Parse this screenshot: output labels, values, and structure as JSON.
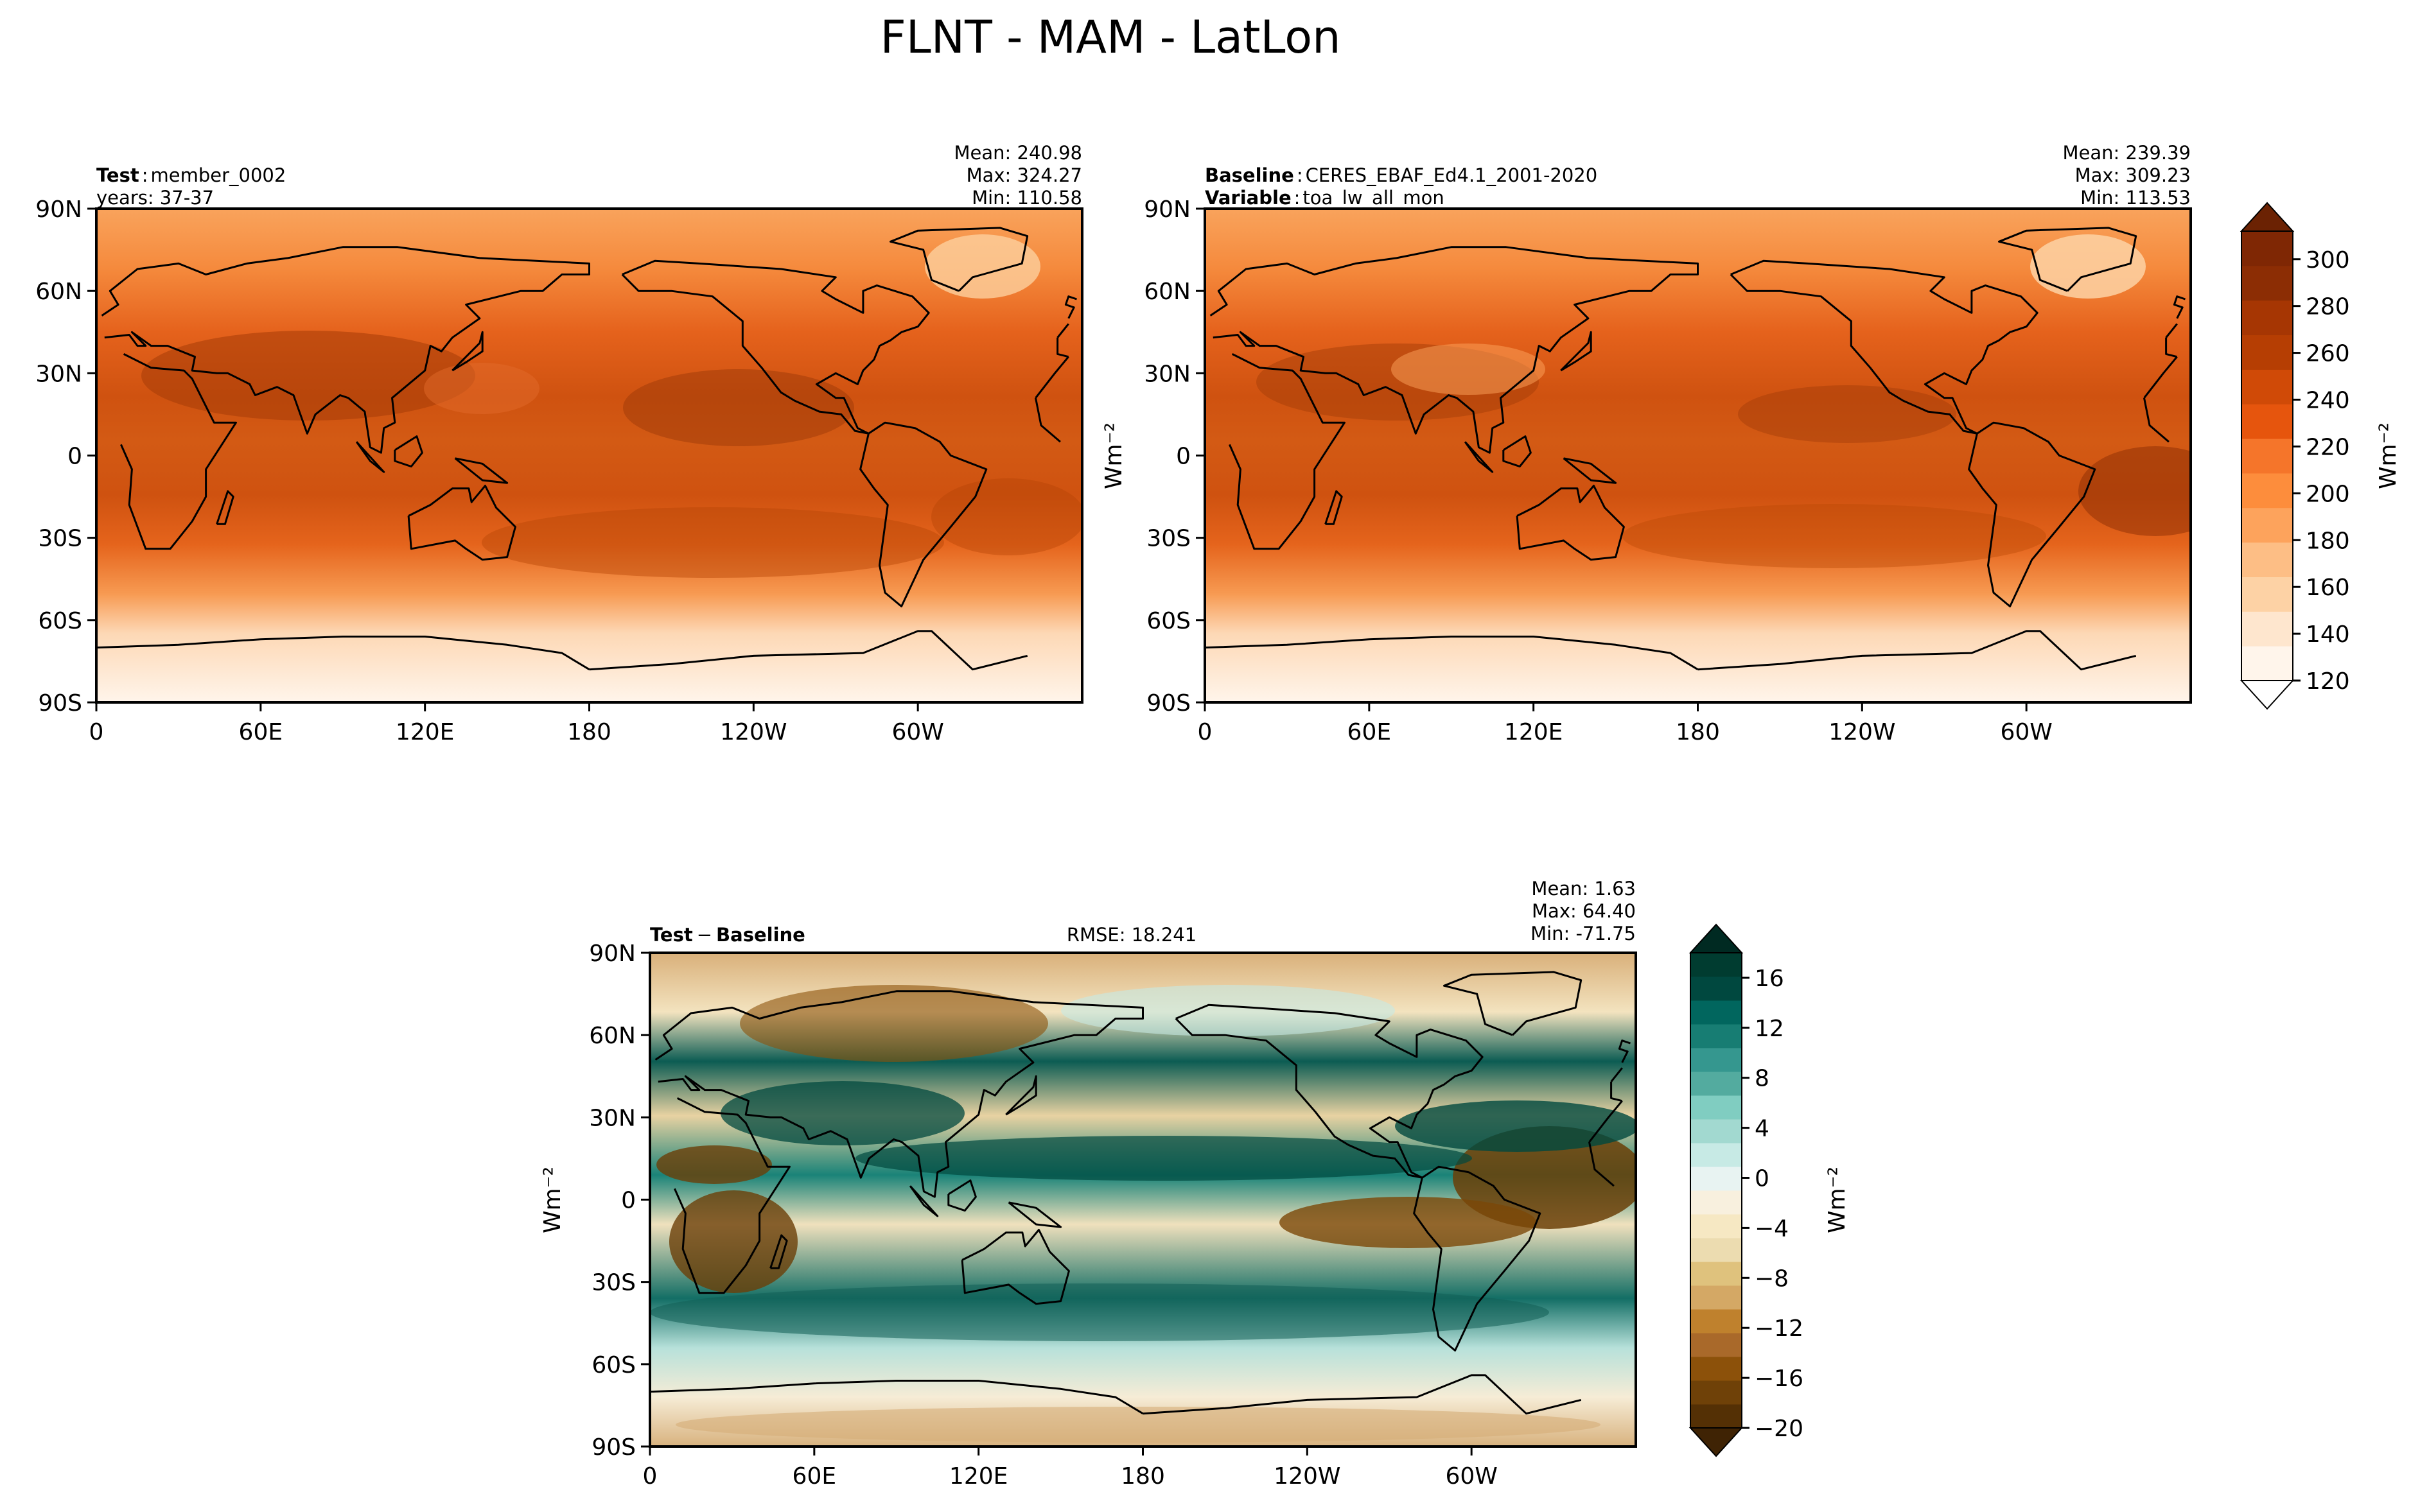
{
  "title": "FLNT - MAM - LatLon",
  "panels": {
    "test": {
      "label_bold": "Test",
      "label_sep": ":",
      "name": "member_0002",
      "line2": "years: 37-37",
      "stats": [
        "Mean: 240.98",
        "Max: 324.27",
        "Min: 110.58"
      ]
    },
    "baseline": {
      "label_bold": "Baseline",
      "label_sep": ":",
      "name": "CERES_EBAF_Ed4.1_2001-2020",
      "label2_bold": "Variable",
      "label2_sep": ":",
      "name2": "toa_lw_all_mon",
      "stats": [
        "Mean: 239.39",
        "Max: 309.23",
        "Min: 113.53"
      ]
    },
    "diff": {
      "label_a": "Test",
      "label_op": "−",
      "label_b": "Baseline",
      "rmse": "RMSE: 18.241",
      "stats": [
        "Mean:  1.63",
        "Max: 64.40",
        "Min: -71.75"
      ]
    }
  },
  "axes": {
    "lat_ticks": [
      "90N",
      "60N",
      "30N",
      "0",
      "30S",
      "60S",
      "90S"
    ],
    "lon_ticks": [
      "0",
      "60E",
      "120E",
      "180",
      "120W",
      "60W"
    ]
  },
  "units": "Wm⁻²",
  "colorbar_main": {
    "ticks": [
      "120",
      "140",
      "160",
      "180",
      "200",
      "220",
      "240",
      "260",
      "280",
      "300"
    ],
    "colors": [
      "#fff5eb",
      "#fee6ce",
      "#fdd2a5",
      "#fdbe85",
      "#fda35c",
      "#fd8d3c",
      "#f5752a",
      "#e6550d",
      "#d04a07",
      "#b63e03",
      "#a63603",
      "#8c2d04",
      "#7f2704"
    ]
  },
  "colorbar_diff": {
    "ticks": [
      "16",
      "12",
      "8",
      "4",
      "0",
      "−4",
      "−8",
      "−12",
      "−16",
      "−20"
    ],
    "colors": [
      "#543005",
      "#6f4108",
      "#8c510a",
      "#a9692a",
      "#bf812d",
      "#d4a865",
      "#dfc27d",
      "#ecdcb0",
      "#f6e8c3",
      "#f8f0de",
      "#e8f3f2",
      "#c7eae5",
      "#a2d9d0",
      "#80cdc1",
      "#53ab9f",
      "#35978f",
      "#177d73",
      "#01665e",
      "#00483f",
      "#003c30"
    ]
  }
}
